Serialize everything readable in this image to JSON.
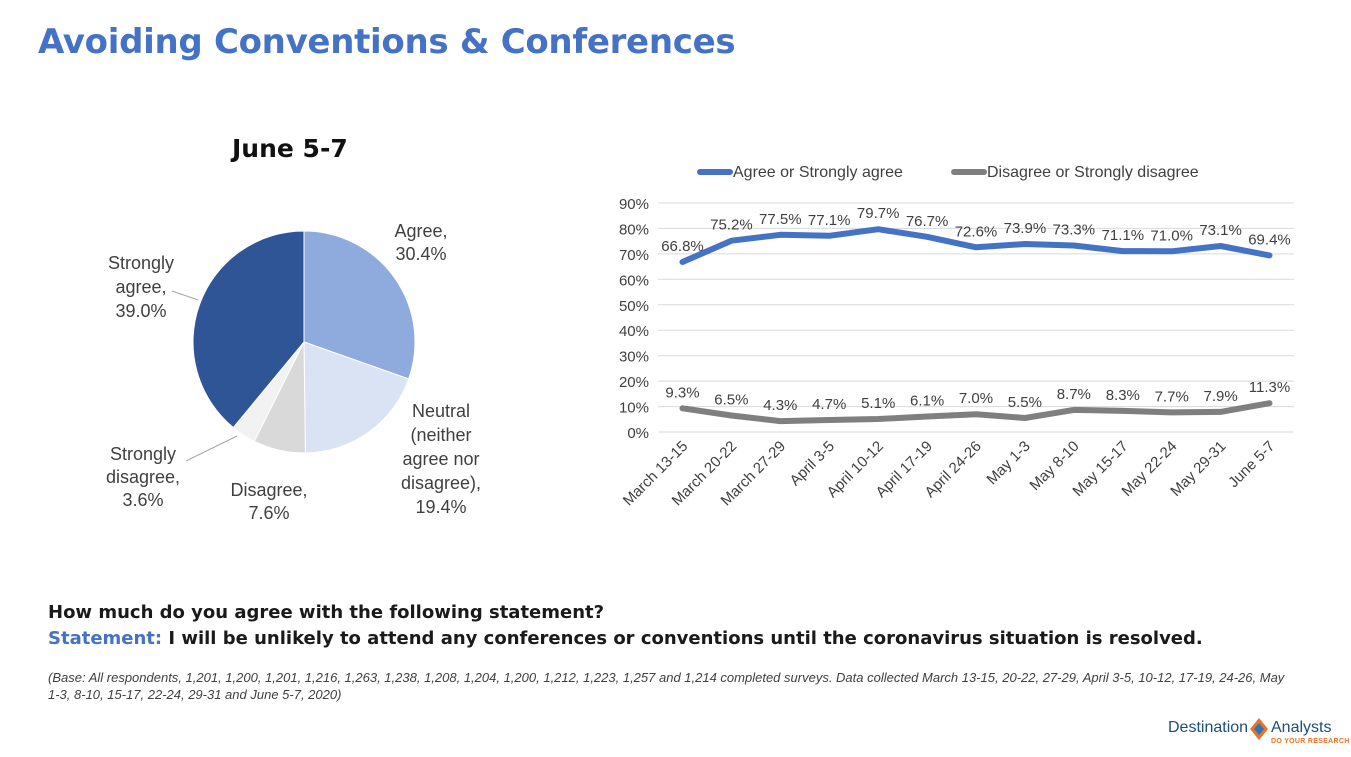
{
  "title": "Avoiding Conventions & Conferences",
  "question": "How much do you agree with the following statement?",
  "statement_label": "Statement:",
  "statement_text": " I will be unlikely to attend any conferences or conventions until the coronavirus situation is resolved.",
  "base_note": "(Base: All respondents, 1,201, 1,200, 1,201, 1,216, 1,263, 1,238, 1,208, 1,204, 1,200, 1,212, 1,223, 1,257 and 1,214 completed surveys. Data collected March 13-15, 20-22, 27-29, April 3-5, 10-12, 17-19, 24-26, May 1-3, 8-10, 15-17, 22-24, 29-31 and June 5-7, 2020)",
  "logo": {
    "name_left": "Destination",
    "name_right": "Analysts",
    "tagline": "DO YOUR RESEARCH"
  },
  "chart_data": [
    {
      "type": "pie",
      "title": "June 5-7",
      "slices": [
        {
          "label_lines": [
            "Agree,",
            "30.4%"
          ],
          "value": 30.4,
          "color": "#8FAADC"
        },
        {
          "label_lines": [
            "Neutral",
            "(neither",
            "agree nor",
            "disagree),",
            "19.4%"
          ],
          "value": 19.4,
          "color": "#DAE3F3"
        },
        {
          "label_lines": [
            "Disagree,",
            "7.6%"
          ],
          "value": 7.6,
          "color": "#D9D9D9"
        },
        {
          "label_lines": [
            "Strongly",
            "disagree,",
            "3.6%"
          ],
          "value": 3.6,
          "color": "#F2F2F2"
        },
        {
          "label_lines": [
            "Strongly",
            "agree,",
            "39.0%"
          ],
          "value": 39.0,
          "color": "#2F5597"
        }
      ]
    },
    {
      "type": "line",
      "categories": [
        "March 13-15",
        "March 20-22",
        "March 27-29",
        "April 3-5",
        "April 10-12",
        "April 17-19",
        "April 24-26",
        "May 1-3",
        "May 8-10",
        "May 15-17",
        "May 22-24",
        "May 29-31",
        "June 5-7"
      ],
      "ylim": [
        0,
        90
      ],
      "yticks": [
        "0%",
        "10%",
        "20%",
        "30%",
        "40%",
        "50%",
        "60%",
        "70%",
        "80%",
        "90%"
      ],
      "legend_position": "top",
      "grid": true,
      "series": [
        {
          "name": "Agree or Strongly agree",
          "color": "#4472C4",
          "values": [
            66.8,
            75.2,
            77.5,
            77.1,
            79.7,
            76.7,
            72.6,
            73.9,
            73.3,
            71.1,
            71.0,
            73.1,
            69.4
          ],
          "labels": [
            "66.8%",
            "75.2%",
            "77.5%",
            "77.1%",
            "79.7%",
            "76.7%",
            "72.6%",
            "73.9%",
            "73.3%",
            "71.1%",
            "71.0%",
            "73.1%",
            "69.4%"
          ]
        },
        {
          "name": "Disagree or Strongly disagree",
          "color": "#7F7F7F",
          "values": [
            9.3,
            6.5,
            4.3,
            4.7,
            5.1,
            6.1,
            7.0,
            5.5,
            8.7,
            8.3,
            7.7,
            7.9,
            11.3
          ],
          "labels": [
            "9.3%",
            "6.5%",
            "4.3%",
            "4.7%",
            "5.1%",
            "6.1%",
            "7.0%",
            "5.5%",
            "8.7%",
            "8.3%",
            "7.7%",
            "7.9%",
            "11.3%"
          ]
        }
      ]
    }
  ]
}
